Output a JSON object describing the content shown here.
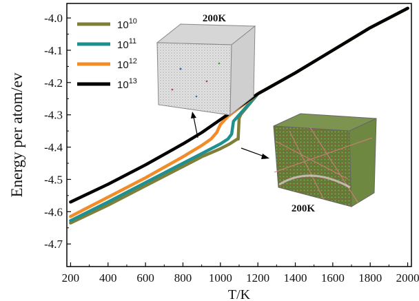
{
  "chart_data": {
    "type": "line",
    "xlabel": "T/K",
    "ylabel": "Energy per atom/ev",
    "xlim": [
      180,
      2020
    ],
    "ylim": [
      -4.77,
      -3.955
    ],
    "xticks": [
      200,
      400,
      600,
      800,
      1000,
      1200,
      1400,
      1600,
      1800,
      2000
    ],
    "yticks": [
      -4.7,
      -4.6,
      -4.5,
      -4.4,
      -4.3,
      -4.2,
      -4.1,
      -4.0
    ],
    "ytick_labels": [
      "-4.7",
      "-4.6",
      "-4.5",
      "-4.4",
      "-4.3",
      "-4.2",
      "-4.1",
      "-4.0"
    ],
    "legend_position": "top-left",
    "series": [
      {
        "name_base": "10",
        "name_exp": "10",
        "color": "#7f7f3a",
        "x": [
          200,
          400,
          600,
          800,
          900,
          1000,
          1050,
          1090,
          1095,
          1100,
          1110,
          1200,
          1400,
          1600,
          1800,
          2000
        ],
        "y": [
          -4.635,
          -4.58,
          -4.52,
          -4.46,
          -4.43,
          -4.405,
          -4.39,
          -4.375,
          -4.375,
          -4.31,
          -4.298,
          -4.235,
          -4.17,
          -4.1,
          -4.03,
          -3.97
        ]
      },
      {
        "name_base": "10",
        "name_exp": "11",
        "color": "#1f8f8f",
        "x": [
          200,
          400,
          600,
          800,
          900,
          1000,
          1040,
          1060,
          1070,
          1200,
          1400,
          1600,
          1800,
          2000
        ],
        "y": [
          -4.628,
          -4.57,
          -4.51,
          -4.45,
          -4.42,
          -4.39,
          -4.375,
          -4.36,
          -4.32,
          -4.235,
          -4.17,
          -4.1,
          -4.03,
          -3.97
        ]
      },
      {
        "name_base": "10",
        "name_exp": "12",
        "color": "#f28c28",
        "x": [
          200,
          400,
          600,
          800,
          900,
          950,
          980,
          1000,
          1040,
          1200,
          1400,
          1600,
          1800,
          2000
        ],
        "y": [
          -4.615,
          -4.555,
          -4.495,
          -4.43,
          -4.395,
          -4.375,
          -4.355,
          -4.33,
          -4.305,
          -4.235,
          -4.17,
          -4.1,
          -4.03,
          -3.97
        ]
      },
      {
        "name_base": "10",
        "name_exp": "13",
        "color": "#000000",
        "x": [
          200,
          400,
          600,
          800,
          900,
          1000,
          1100,
          1200,
          1400,
          1600,
          1800,
          2000
        ],
        "y": [
          -4.57,
          -4.515,
          -4.455,
          -4.39,
          -4.355,
          -4.315,
          -4.275,
          -4.235,
          -4.17,
          -4.1,
          -4.03,
          -3.97
        ]
      }
    ],
    "insets": [
      {
        "label": "200K"
      },
      {
        "label": "200K"
      }
    ]
  }
}
